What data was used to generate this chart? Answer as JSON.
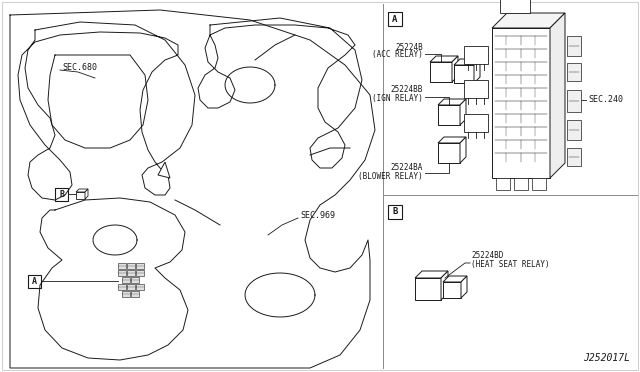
{
  "bg_color": "#ffffff",
  "line_color": "#1a1a1a",
  "fig_width": 6.4,
  "fig_height": 3.72,
  "dpi": 100,
  "diagram_label": "J252017L",
  "sec680_label": "SEC.680",
  "sec969_label": "SEC.969",
  "sec240_label": "SEC.240",
  "label_A": "A",
  "label_B": "B",
  "part_acc": "25224B",
  "part_acc_sub": "(ACC RELAY)",
  "part_ign": "25224BB",
  "part_ign_sub": "(IGN RELAY)",
  "part_blower": "25224BA",
  "part_blower_sub": "(BLOWER RELAY)",
  "part_heat": "25224BD",
  "part_heat_sub": "(HEAT SEAT RELAY)"
}
